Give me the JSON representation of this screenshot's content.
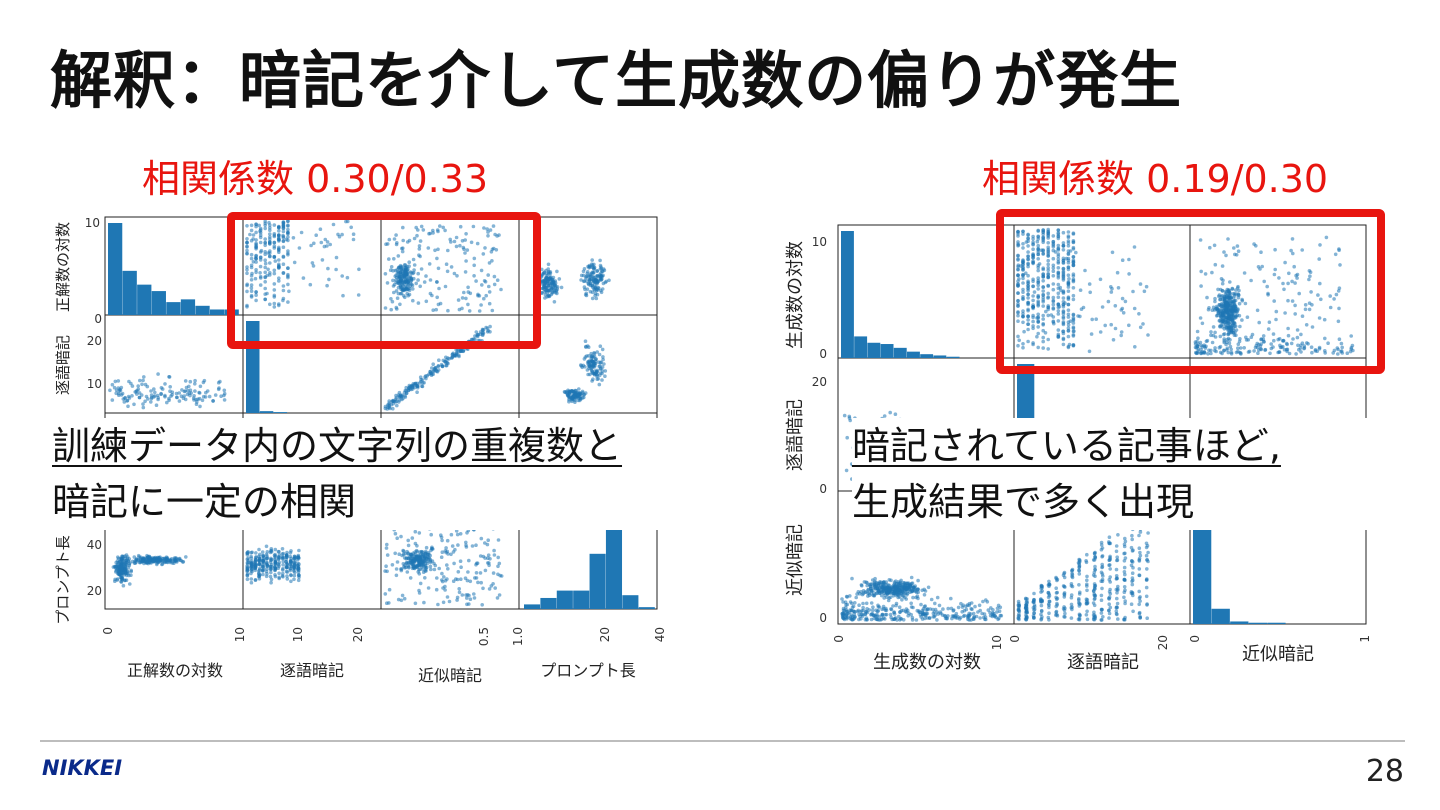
{
  "slide": {
    "title": "解釈：暗記を介して生成数の偏りが発生",
    "page_number": "28",
    "logo_text": "NIKKEI"
  },
  "left_panel": {
    "correlation_label": "相関係数 0.30/0.33",
    "caption_line1": "訓練データ内の文字列の重複数と",
    "caption_line2": "暗記に一定の相関"
  },
  "right_panel": {
    "correlation_label": "相関係数 0.19/0.30",
    "caption_line1": "暗記されている記事ほど,",
    "caption_line2": "生成結果で多く出現"
  },
  "colors": {
    "accent_red": "#e8150f",
    "scatter_blue": "#1f77b4",
    "logo_blue": "#0a2a8a"
  },
  "chart_data": [
    {
      "type": "scatter",
      "matrix": "scatter-matrix",
      "variables": [
        "正解数の対数",
        "逐語暗記",
        "近似暗記",
        "プロンプト長"
      ],
      "y_axis_labels": [
        "正解数の対数",
        "逐語暗記",
        "近似暗記",
        "プロンプト長"
      ],
      "row_ticks": [
        [
          "0",
          "10"
        ],
        [
          "10",
          "20"
        ],
        [],
        [
          "20",
          "40"
        ]
      ],
      "col_ticks": [
        [
          "0",
          "10"
        ],
        [
          "10",
          "20"
        ],
        [
          "0.5",
          "1.0"
        ],
        [
          "20",
          "40"
        ]
      ],
      "highlighted_cells": [
        "正解数の対数 × 逐語暗記",
        "正解数の対数 × 近似暗記"
      ],
      "correlation": [
        0.3,
        0.33
      ]
    },
    {
      "type": "scatter",
      "matrix": "scatter-matrix",
      "variables": [
        "生成数の対数",
        "逐語暗記",
        "近似暗記"
      ],
      "y_axis_labels": [
        "生成数の対数",
        "逐語暗記",
        "近似暗記"
      ],
      "row_ticks": [
        [
          "0",
          "10"
        ],
        [
          "0",
          "20"
        ],
        [
          "0"
        ]
      ],
      "col_ticks": [
        [
          "0",
          "10"
        ],
        [
          "0",
          "20"
        ],
        [
          "0",
          "1"
        ]
      ],
      "highlighted_cells": [
        "生成数の対数 × 逐語暗記",
        "生成数の対数 × 近似暗記"
      ],
      "correlation": [
        0.19,
        0.3
      ]
    }
  ]
}
